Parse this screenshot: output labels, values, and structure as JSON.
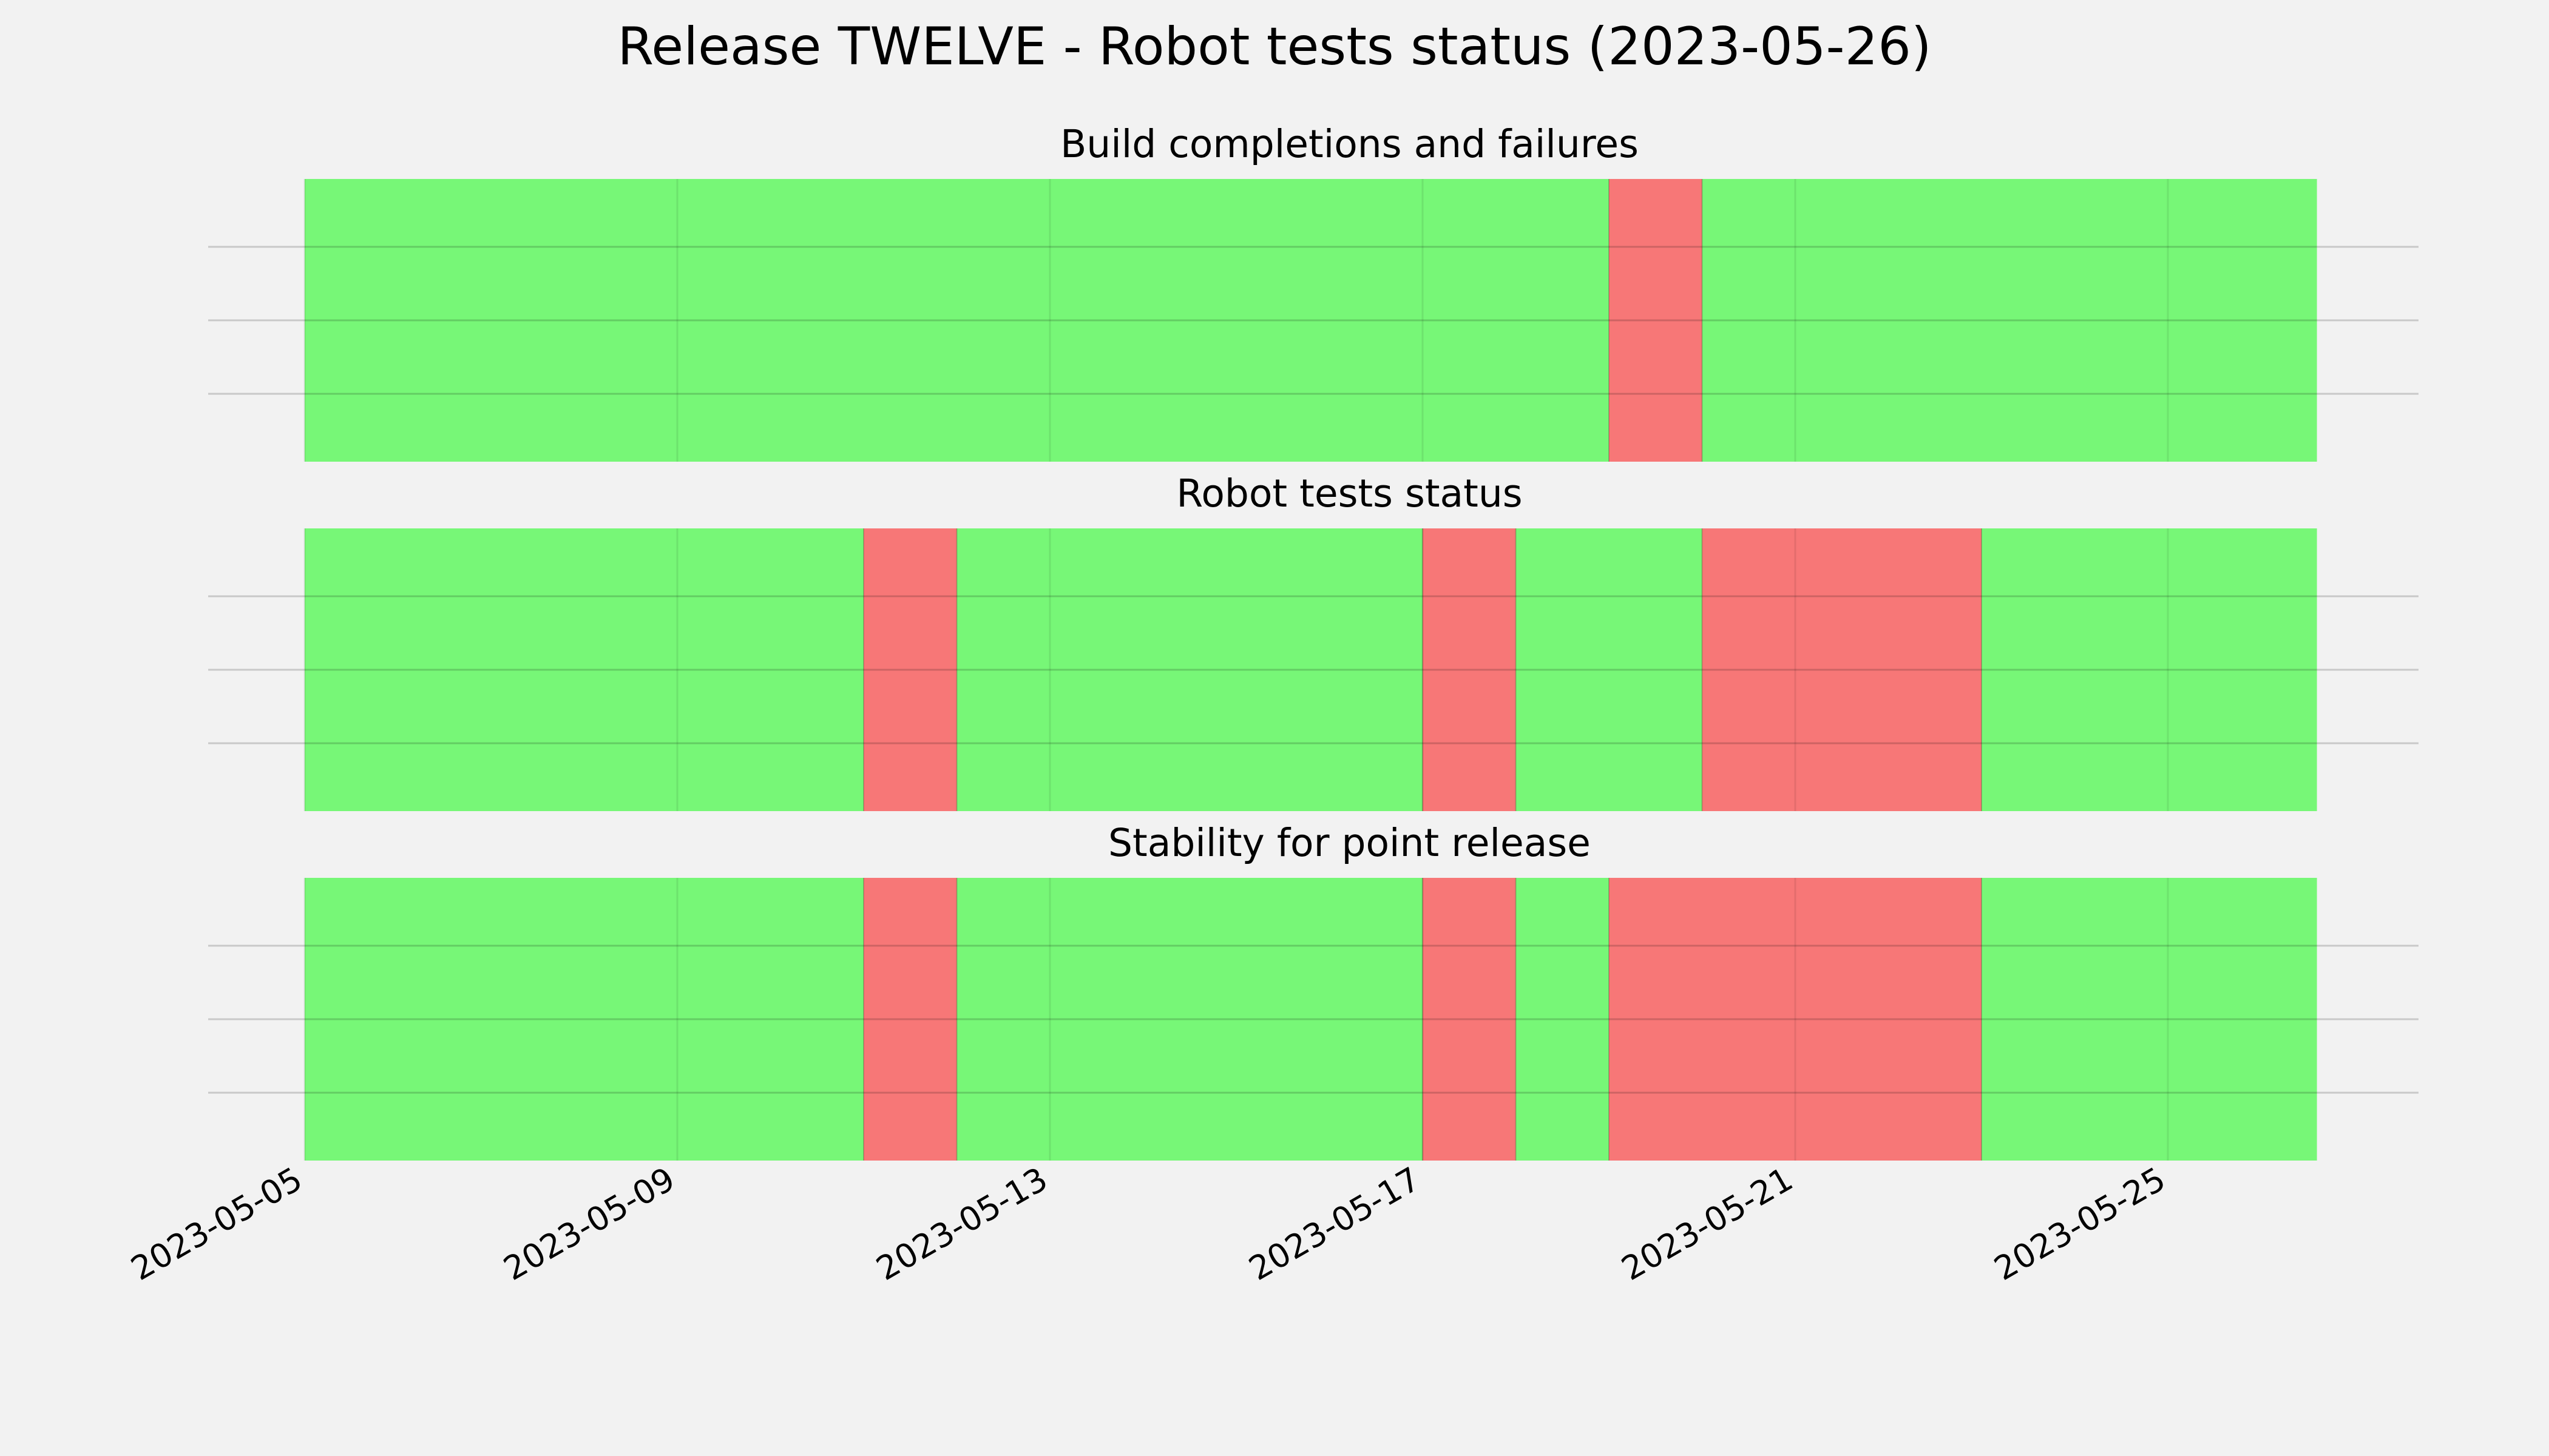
{
  "title": "Release TWELVE - Robot tests status (2023-05-26)",
  "colors": {
    "pass": "#77f777",
    "fail": "#f77777",
    "background": "#f2f2f2",
    "grid": "#cccccc"
  },
  "chart_data": [
    {
      "type": "timeline",
      "title": "Build completions and failures",
      "x_range": [
        "2023-05-05",
        "2023-05-27"
      ],
      "segments": [
        {
          "start": "2023-05-05",
          "end": "2023-05-19",
          "status": "pass"
        },
        {
          "start": "2023-05-19",
          "end": "2023-05-20",
          "status": "fail"
        },
        {
          "start": "2023-05-20",
          "end": "2023-05-26.6",
          "status": "pass"
        }
      ]
    },
    {
      "type": "timeline",
      "title": "Robot tests status",
      "x_range": [
        "2023-05-05",
        "2023-05-27"
      ],
      "segments": [
        {
          "start": "2023-05-05",
          "end": "2023-05-11",
          "status": "pass"
        },
        {
          "start": "2023-05-11",
          "end": "2023-05-12",
          "status": "fail"
        },
        {
          "start": "2023-05-12",
          "end": "2023-05-17",
          "status": "pass"
        },
        {
          "start": "2023-05-17",
          "end": "2023-05-18",
          "status": "fail"
        },
        {
          "start": "2023-05-18",
          "end": "2023-05-20",
          "status": "pass"
        },
        {
          "start": "2023-05-20",
          "end": "2023-05-23",
          "status": "fail"
        },
        {
          "start": "2023-05-23",
          "end": "2023-05-26.6",
          "status": "pass"
        }
      ]
    },
    {
      "type": "timeline",
      "title": "Stability for point release",
      "x_range": [
        "2023-05-05",
        "2023-05-27"
      ],
      "segments": [
        {
          "start": "2023-05-05",
          "end": "2023-05-11",
          "status": "pass"
        },
        {
          "start": "2023-05-11",
          "end": "2023-05-12",
          "status": "fail"
        },
        {
          "start": "2023-05-12",
          "end": "2023-05-17",
          "status": "pass"
        },
        {
          "start": "2023-05-17",
          "end": "2023-05-18",
          "status": "fail"
        },
        {
          "start": "2023-05-18",
          "end": "2023-05-19",
          "status": "pass"
        },
        {
          "start": "2023-05-19",
          "end": "2023-05-23",
          "status": "fail"
        },
        {
          "start": "2023-05-23",
          "end": "2023-05-26.6",
          "status": "pass"
        }
      ]
    }
  ],
  "x_ticks": [
    "2023-05-05",
    "2023-05-09",
    "2023-05-13",
    "2023-05-17",
    "2023-05-21",
    "2023-05-25"
  ]
}
